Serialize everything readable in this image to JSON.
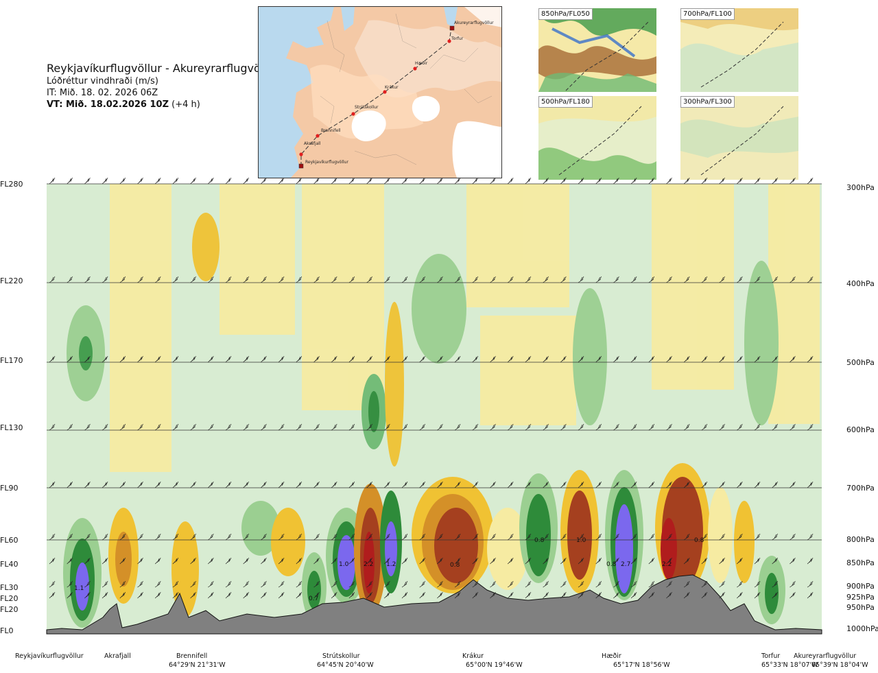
{
  "header": {
    "route": "Reykjavíkurflugvöllur - Akureyrarflugvöllur",
    "variable": "Lóðréttur vindhraði (m/s)",
    "it": "IT: Mið. 18. 02. 2026 06Z",
    "vt_bold": "VT: Mið. 18.02.2026 10Z",
    "vt_suffix": "(+4 h)"
  },
  "route_map": {
    "waypoints": [
      "Akureyrarflugvöllur",
      "Torfur",
      "Hæðir",
      "Krákur",
      "Strútskollur",
      "Brennifell",
      "Akrafjall",
      "Reykjavíkurflugvöllur"
    ]
  },
  "mini_maps": [
    {
      "label": "850hPa/FL050"
    },
    {
      "label": "700hPa/FL100"
    },
    {
      "label": "500hPa/FL180"
    },
    {
      "label": "300hPa/FL300"
    }
  ],
  "levels": [
    {
      "fl": "FL280",
      "hpa": "300hPa"
    },
    {
      "fl": "FL220",
      "hpa": "400hPa"
    },
    {
      "fl": "FL170",
      "hpa": "500hPa"
    },
    {
      "fl": "FL130",
      "hpa": "600hPa"
    },
    {
      "fl": "FL90",
      "hpa": "700hPa"
    },
    {
      "fl": "FL60",
      "hpa": "800hPa"
    },
    {
      "fl": "FL40",
      "hpa": "850hPa"
    },
    {
      "fl": "FL30",
      "hpa": "900hPa"
    },
    {
      "fl": "FL20",
      "hpa": "925hPa"
    },
    {
      "fl": "FL20",
      "hpa": "950hPa"
    },
    {
      "fl": "FL0",
      "hpa": "1000hPa"
    }
  ],
  "chart_data": {
    "type": "heatmap",
    "title": "Lóðréttur vindhraði (m/s)",
    "xlabel": "",
    "ylabel": "",
    "x_positions": [
      {
        "name": "Reykjavíkurflugvöllur",
        "coord": ""
      },
      {
        "name": "Akrafjall",
        "coord": ""
      },
      {
        "name": "Brennifell",
        "coord": "64°29'N 21°31'W"
      },
      {
        "name": "Strútskollur",
        "coord": "64°45'N 20°40'W"
      },
      {
        "name": "Krákur",
        "coord": "65°00'N 19°46'W"
      },
      {
        "name": "Hæðir",
        "coord": "65°17'N 18°56'W"
      },
      {
        "name": "Torfur",
        "coord": "65°33'N 18°07'W"
      },
      {
        "name": "Akureyrarflugvöllur",
        "coord": "65°39'N 18°04'W"
      }
    ],
    "y_levels_hpa": [
      300,
      400,
      500,
      600,
      700,
      800,
      850,
      900,
      925,
      950,
      1000
    ],
    "value_labels": [
      "1.1",
      "0.7",
      "1.0",
      "2.2",
      "1.2",
      "0.8",
      "0.8",
      "1.0",
      "0.8",
      "2.7",
      "2.2",
      "0.8"
    ],
    "terrain": "grey fill along the route",
    "grid": false
  }
}
